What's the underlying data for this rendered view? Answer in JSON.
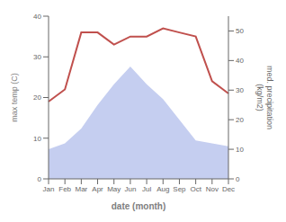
{
  "chart_data": {
    "type": "line",
    "categories": [
      "Jan",
      "Feb",
      "Mar",
      "Apr",
      "May",
      "Jun",
      "Jul",
      "Aug",
      "Sep",
      "Oct",
      "Nov",
      "Dec"
    ],
    "xlabel": "date (month)",
    "ylabel": "max temp (C)",
    "y2label": "med. precipitation\n(kg/m2)",
    "series": [
      {
        "type": "area",
        "axis": "y2",
        "color": "#c5cef0",
        "values": [
          10,
          12,
          17,
          25,
          32,
          38,
          32,
          27,
          20,
          13,
          12,
          11
        ]
      },
      {
        "type": "line",
        "color": "#c0504d",
        "values": [
          19,
          22,
          36,
          36,
          33,
          35,
          35,
          37,
          36,
          35,
          24,
          21
        ]
      }
    ],
    "ylim": [
      0,
      40
    ],
    "yticks": [
      0,
      10,
      20,
      30,
      40
    ],
    "y2lim": [
      0,
      55
    ],
    "y2ticks": [
      0,
      10,
      20,
      30,
      40,
      50
    ],
    "grid": false
  }
}
